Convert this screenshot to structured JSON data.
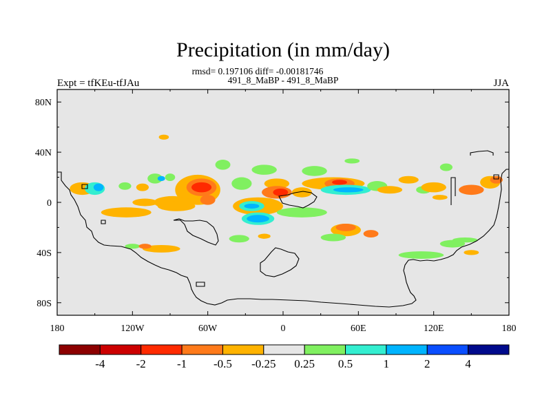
{
  "chart_data": {
    "type": "heatmap",
    "title": "Precipitation (in mm/day)",
    "stats_line": "rmsd= 0.197106 diff= -0.00181746",
    "subtitle": "491_8_MaBP - 491_8_MaBP",
    "left_label": "Expt = tfKEu-tfJAu",
    "right_label": "JJA",
    "x_ticks": [
      "180",
      "120W",
      "60W",
      "0",
      "60E",
      "120E",
      "180"
    ],
    "x_values": [
      -180,
      -120,
      -60,
      0,
      60,
      120,
      180
    ],
    "y_ticks": [
      "80N",
      "40N",
      "0",
      "40S",
      "80S"
    ],
    "y_values": [
      80,
      40,
      0,
      -40,
      -80
    ],
    "xlim": [
      -180,
      180
    ],
    "ylim": [
      -90,
      90
    ],
    "background_color": "#e6e6e6",
    "colorbar": {
      "colors": [
        "#8c0000",
        "#cc0000",
        "#ff2a00",
        "#ff7a1a",
        "#ffb300",
        "#e6e6e6",
        "#80f060",
        "#33eed0",
        "#00b4ff",
        "#0a4eff",
        "#000a8c"
      ],
      "labels": [
        "-4",
        "-2",
        "-1",
        "-0.5",
        "-0.25",
        "0.25",
        "0.5",
        "1",
        "2",
        "4"
      ]
    },
    "anomaly_regions": [
      {
        "lon": -160,
        "lat": 11,
        "rlon": 10,
        "rlat": 5,
        "value": -0.3
      },
      {
        "lon": -150,
        "lat": 11,
        "rlon": 8,
        "rlat": 5,
        "value": 0.6
      },
      {
        "lon": -147,
        "lat": 12,
        "rlon": 4,
        "rlat": 3,
        "value": 1.2
      },
      {
        "lon": -126,
        "lat": 13,
        "rlon": 5,
        "rlat": 3,
        "value": 0.3
      },
      {
        "lon": -112,
        "lat": 12,
        "rlon": 5,
        "rlat": 3,
        "value": -0.3
      },
      {
        "lon": -102,
        "lat": 19,
        "rlon": 6,
        "rlat": 4,
        "value": 0.3
      },
      {
        "lon": -97,
        "lat": 19,
        "rlon": 3,
        "rlat": 2,
        "value": 1.2
      },
      {
        "lon": -90,
        "lat": 20,
        "rlon": 4,
        "rlat": 3,
        "value": 0.3
      },
      {
        "lon": -110,
        "lat": 0,
        "rlon": 10,
        "rlat": 3,
        "value": -0.3
      },
      {
        "lon": -68,
        "lat": 10,
        "rlon": 18,
        "rlat": 12,
        "value": -0.3
      },
      {
        "lon": -65,
        "lat": 12,
        "rlon": 12,
        "rlat": 7,
        "value": -0.7
      },
      {
        "lon": -65,
        "lat": 12,
        "rlon": 8,
        "rlat": 4,
        "value": -1.5
      },
      {
        "lon": -60,
        "lat": 2,
        "rlon": 6,
        "rlat": 4,
        "value": -0.7
      },
      {
        "lon": -88,
        "lat": 0,
        "rlon": 15,
        "rlat": 5,
        "value": -0.3
      },
      {
        "lon": -33,
        "lat": 15,
        "rlon": 8,
        "rlat": 5,
        "value": 0.3
      },
      {
        "lon": -48,
        "lat": 30,
        "rlon": 6,
        "rlat": 4,
        "value": 0.3
      },
      {
        "lon": -95,
        "lat": 52,
        "rlon": 4,
        "rlat": 2,
        "value": -0.3
      },
      {
        "lon": -15,
        "lat": 26,
        "rlon": 10,
        "rlat": 4,
        "value": 0.3
      },
      {
        "lon": -5,
        "lat": 15,
        "rlon": 10,
        "rlat": 4,
        "value": -0.3
      },
      {
        "lon": 25,
        "lat": 25,
        "rlon": 10,
        "rlat": 4,
        "value": 0.3
      },
      {
        "lon": -5,
        "lat": 8,
        "rlon": 12,
        "rlat": 5,
        "value": -0.7
      },
      {
        "lon": -2,
        "lat": 8,
        "rlon": 6,
        "rlat": 3,
        "value": -1.5
      },
      {
        "lon": 15,
        "lat": 8,
        "rlon": 8,
        "rlat": 4,
        "value": -0.3
      },
      {
        "lon": 40,
        "lat": 15,
        "rlon": 25,
        "rlat": 5,
        "value": -0.3
      },
      {
        "lon": 45,
        "lat": 15,
        "rlon": 12,
        "rlat": 4,
        "value": -0.7
      },
      {
        "lon": 45,
        "lat": 16,
        "rlon": 6,
        "rlat": 2,
        "value": -1.5
      },
      {
        "lon": 50,
        "lat": 10,
        "rlon": 20,
        "rlat": 4,
        "value": 0.6
      },
      {
        "lon": 52,
        "lat": 10,
        "rlon": 12,
        "rlat": 2,
        "value": 1.2
      },
      {
        "lon": 75,
        "lat": 13,
        "rlon": 8,
        "rlat": 4,
        "value": 0.3
      },
      {
        "lon": 85,
        "lat": 10,
        "rlon": 10,
        "rlat": 3,
        "value": -0.3
      },
      {
        "lon": 100,
        "lat": 18,
        "rlon": 8,
        "rlat": 3,
        "value": -0.3
      },
      {
        "lon": 112,
        "lat": 10,
        "rlon": 6,
        "rlat": 3,
        "value": 0.3
      },
      {
        "lon": 120,
        "lat": 12,
        "rlon": 10,
        "rlat": 4,
        "value": -0.3
      },
      {
        "lon": 125,
        "lat": 4,
        "rlon": 6,
        "rlat": 2,
        "value": -0.3
      },
      {
        "lon": 150,
        "lat": 10,
        "rlon": 10,
        "rlat": 4,
        "value": -0.7
      },
      {
        "lon": 165,
        "lat": 16,
        "rlon": 8,
        "rlat": 5,
        "value": -0.3
      },
      {
        "lon": 170,
        "lat": 18,
        "rlon": 5,
        "rlat": 3,
        "value": -0.7
      },
      {
        "lon": 130,
        "lat": 28,
        "rlon": 5,
        "rlat": 3,
        "value": 0.3
      },
      {
        "lon": 55,
        "lat": 33,
        "rlon": 6,
        "rlat": 2,
        "value": 0.3
      },
      {
        "lon": -85,
        "lat": -3,
        "rlon": 15,
        "rlat": 4,
        "value": -0.3
      },
      {
        "lon": -125,
        "lat": -8,
        "rlon": 20,
        "rlat": 4,
        "value": -0.3
      },
      {
        "lon": -20,
        "lat": -3,
        "rlon": 20,
        "rlat": 7,
        "value": -0.3
      },
      {
        "lon": -25,
        "lat": -3,
        "rlon": 10,
        "rlat": 4,
        "value": 0.6
      },
      {
        "lon": -25,
        "lat": -3,
        "rlon": 6,
        "rlat": 2,
        "value": 1.2
      },
      {
        "lon": -20,
        "lat": -13,
        "rlon": 13,
        "rlat": 5,
        "value": 0.6
      },
      {
        "lon": -20,
        "lat": -13,
        "rlon": 9,
        "rlat": 3,
        "value": 1.2
      },
      {
        "lon": 15,
        "lat": -8,
        "rlon": 20,
        "rlat": 4,
        "value": 0.3
      },
      {
        "lon": 50,
        "lat": -22,
        "rlon": 12,
        "rlat": 5,
        "value": -0.3
      },
      {
        "lon": 50,
        "lat": -20,
        "rlon": 8,
        "rlat": 3,
        "value": -0.7
      },
      {
        "lon": 70,
        "lat": -25,
        "rlon": 6,
        "rlat": 3,
        "value": -0.7
      },
      {
        "lon": 40,
        "lat": -28,
        "rlon": 10,
        "rlat": 3,
        "value": 0.3
      },
      {
        "lon": -35,
        "lat": -29,
        "rlon": 8,
        "rlat": 3,
        "value": 0.3
      },
      {
        "lon": -15,
        "lat": -27,
        "rlon": 5,
        "rlat": 2,
        "value": -0.3
      },
      {
        "lon": -120,
        "lat": -35,
        "rlon": 6,
        "rlat": 2,
        "value": 0.3
      },
      {
        "lon": -97,
        "lat": -37,
        "rlon": 15,
        "rlat": 3,
        "value": -0.3
      },
      {
        "lon": -110,
        "lat": -35,
        "rlon": 5,
        "rlat": 2,
        "value": -0.7
      },
      {
        "lon": 110,
        "lat": -42,
        "rlon": 18,
        "rlat": 3,
        "value": 0.3
      },
      {
        "lon": 135,
        "lat": -33,
        "rlon": 10,
        "rlat": 3,
        "value": 0.3
      },
      {
        "lon": 145,
        "lat": -30,
        "rlon": 10,
        "rlat": 2,
        "value": 0.3
      },
      {
        "lon": 150,
        "lat": -40,
        "rlon": 6,
        "rlat": 2,
        "value": -0.3
      }
    ]
  }
}
